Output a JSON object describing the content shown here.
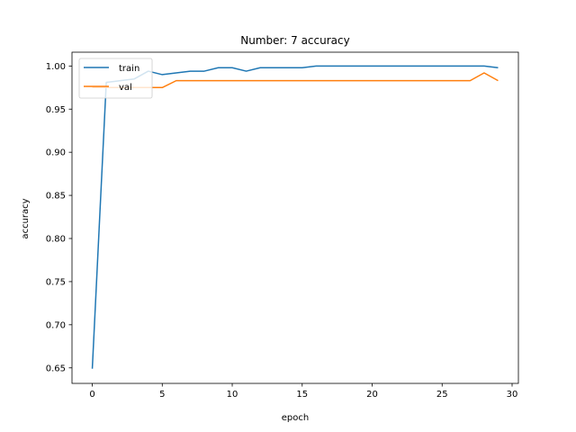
{
  "chart_data": {
    "type": "line",
    "title": "Number: 7 accuracy",
    "xlabel": "epoch",
    "ylabel": "accuracy",
    "xlim": [
      -1.45,
      30.45
    ],
    "ylim": [
      0.632,
      1.016
    ],
    "xticks": [
      0,
      5,
      10,
      15,
      20,
      25,
      30
    ],
    "yticks": [
      0.65,
      0.7,
      0.75,
      0.8,
      0.85,
      0.9,
      0.95,
      1.0
    ],
    "grid": false,
    "legend_position": "top-left",
    "x": [
      0,
      1,
      2,
      3,
      4,
      5,
      6,
      7,
      8,
      9,
      10,
      11,
      12,
      13,
      14,
      15,
      16,
      17,
      18,
      19,
      20,
      21,
      22,
      23,
      24,
      25,
      26,
      27,
      28,
      29
    ],
    "series": [
      {
        "name": "train",
        "color": "#1f77b4",
        "values": [
          0.649,
          0.981,
          0.983,
          0.985,
          0.994,
          0.99,
          0.992,
          0.994,
          0.994,
          0.998,
          0.998,
          0.994,
          0.998,
          0.998,
          0.998,
          0.998,
          1.0,
          1.0,
          1.0,
          1.0,
          1.0,
          1.0,
          1.0,
          1.0,
          1.0,
          1.0,
          1.0,
          1.0,
          1.0,
          0.998
        ]
      },
      {
        "name": "val",
        "color": "#ff7f0e",
        "values": [
          0.975,
          0.975,
          0.975,
          0.975,
          0.975,
          0.975,
          0.983,
          0.983,
          0.983,
          0.983,
          0.983,
          0.983,
          0.983,
          0.983,
          0.983,
          0.983,
          0.983,
          0.983,
          0.983,
          0.983,
          0.983,
          0.983,
          0.983,
          0.983,
          0.983,
          0.983,
          0.983,
          0.983,
          0.992,
          0.983
        ]
      }
    ]
  }
}
